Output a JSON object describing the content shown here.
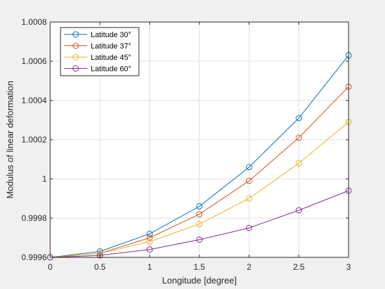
{
  "chart_data": {
    "type": "line",
    "title": "",
    "xlabel": "Longitude [degree]",
    "ylabel": "Modulus of linear deformation",
    "xlim": [
      0,
      3
    ],
    "ylim": [
      0.9996,
      1.0008
    ],
    "grid": true,
    "legend_position": "top-left",
    "x_ticks": [
      0,
      0.5,
      1,
      1.5,
      2,
      2.5,
      3
    ],
    "x_tick_labels": [
      "0",
      "0.5",
      "1",
      "1.5",
      "2",
      "2.5",
      "3"
    ],
    "y_ticks": [
      0.9996,
      0.9998,
      1.0,
      1.0002,
      1.0004,
      1.0006,
      1.0008
    ],
    "y_tick_labels": [
      "0.9996",
      "0.9998",
      "1",
      "1.0002",
      "1.0004",
      "1.0006",
      "1.0008"
    ],
    "x": [
      0,
      0.5,
      1,
      1.5,
      2,
      2.5,
      3
    ],
    "series": [
      {
        "name": "Latitude 30°",
        "color": "#0072BD",
        "values": [
          0.9996,
          0.99963,
          0.99972,
          0.99986,
          1.00006,
          1.00031,
          1.00063
        ]
      },
      {
        "name": "Latitude 37°",
        "color": "#D95319",
        "values": [
          0.9996,
          0.99962,
          0.9997,
          0.99982,
          0.99999,
          1.00021,
          1.00047
        ]
      },
      {
        "name": "Latitude 45°",
        "color": "#EDB120",
        "values": [
          0.9996,
          0.99962,
          0.99968,
          0.99977,
          0.9999,
          1.00008,
          1.00029
        ]
      },
      {
        "name": "Latitude 60°",
        "color": "#7E2F8E",
        "values": [
          0.9996,
          0.99961,
          0.99964,
          0.99969,
          0.99975,
          0.99984,
          0.99994
        ]
      }
    ]
  }
}
